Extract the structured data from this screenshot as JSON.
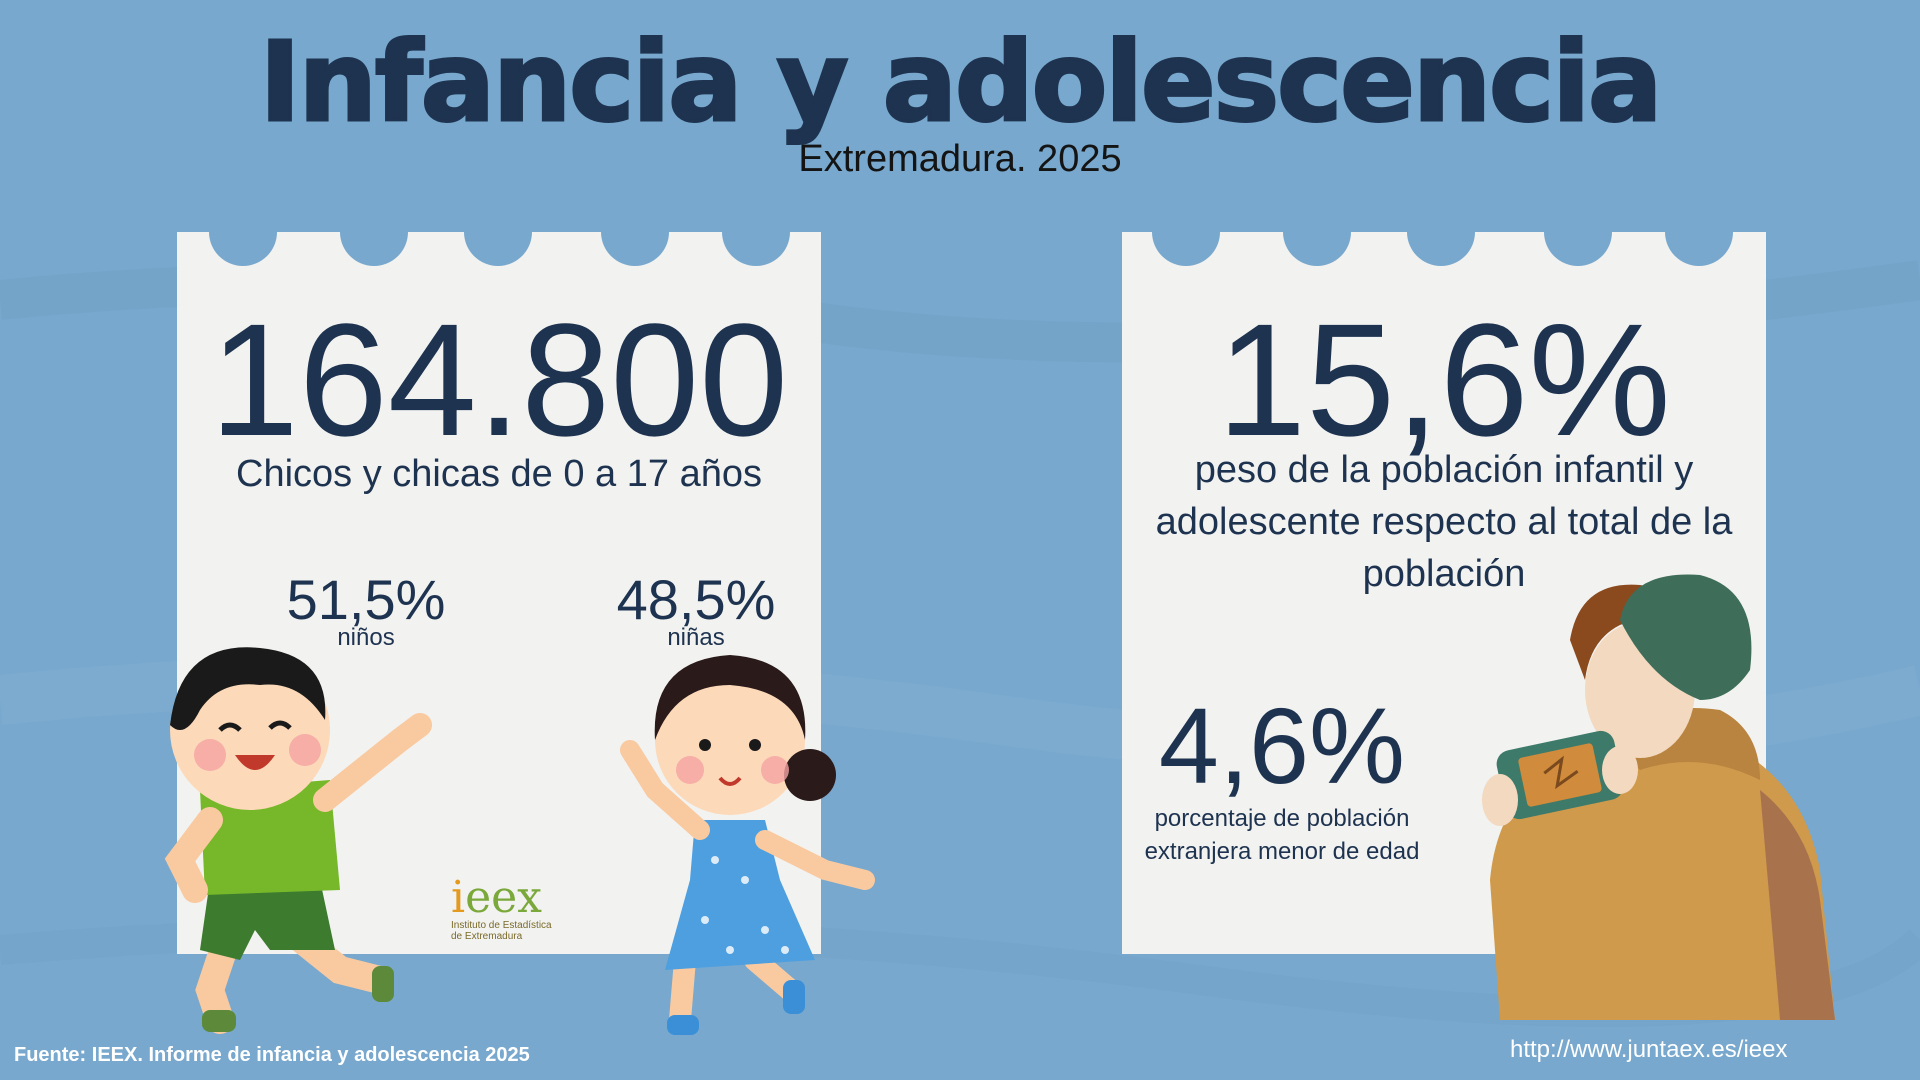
{
  "header": {
    "title": "Infancia y adolescencia",
    "subtitle": "Extremadura. 2025"
  },
  "left_card": {
    "total": "164.800",
    "description": "Chicos y chicas de 0 a 17 años",
    "boys_pct": "51,5%",
    "boys_label": "niños",
    "girls_pct": "48,5%",
    "girls_label": "niñas"
  },
  "right_card": {
    "share_pct": "15,6%",
    "share_line1": "peso de la población infantil y",
    "share_line2": "adolescente  respecto al total de la",
    "share_line3": "población",
    "foreign_pct": "4,6%",
    "foreign_line1": "porcentaje de población",
    "foreign_line2": "extranjera menor de edad"
  },
  "logo": {
    "text_e": "i",
    "text_rest": "eex",
    "sub_line1": "Instituto de Estadística",
    "sub_line2": "de Extremadura"
  },
  "footer": {
    "source": "Fuente: IEEX. Informe de infancia y adolescencia 2025",
    "url": "http://www.juntaex.es/ieex"
  },
  "colors": {
    "background": "#78a8cd",
    "card": "#f2f2f0",
    "text_dark": "#1e3350",
    "logo_orange": "#e39a1f",
    "logo_green": "#7aa83b"
  }
}
